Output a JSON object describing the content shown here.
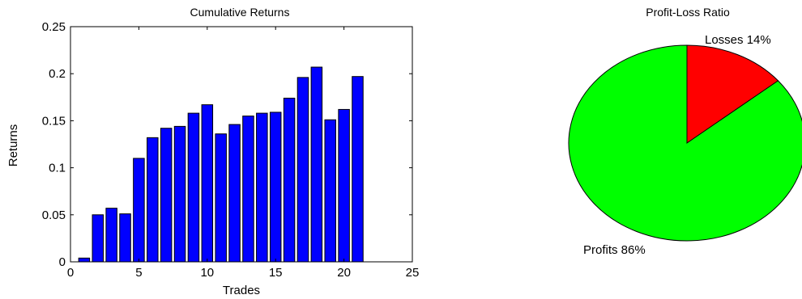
{
  "chart_data": [
    {
      "type": "bar",
      "title": "Cumulative Returns",
      "xlabel": "Trades",
      "ylabel": "Returns",
      "x": [
        1,
        2,
        3,
        4,
        5,
        6,
        7,
        8,
        9,
        10,
        11,
        12,
        13,
        14,
        15,
        16,
        17,
        18,
        19,
        20,
        21
      ],
      "values": [
        0.004,
        0.05,
        0.057,
        0.051,
        0.11,
        0.132,
        0.142,
        0.144,
        0.158,
        0.167,
        0.136,
        0.146,
        0.155,
        0.158,
        0.159,
        0.174,
        0.196,
        0.207,
        0.151,
        0.162,
        0.197
      ],
      "xlim": [
        0,
        25
      ],
      "ylim": [
        0,
        0.25
      ],
      "xticks": [
        "0",
        "5",
        "10",
        "15",
        "20",
        "25"
      ],
      "yticks": [
        "0",
        "0.05",
        "0.1",
        "0.15",
        "0.2",
        "0.25"
      ],
      "colors": {
        "bar_fill": "#0000ff",
        "bar_edge": "#000000"
      },
      "grid": false
    },
    {
      "type": "pie",
      "title": "Profit-Loss Ratio",
      "slices": [
        {
          "label": "Losses",
          "value": 14,
          "percent_label": "14%",
          "color": "#ff0000"
        },
        {
          "label": "Profits",
          "value": 86,
          "percent_label": "86%",
          "color": "#00ff00"
        }
      ]
    }
  ]
}
